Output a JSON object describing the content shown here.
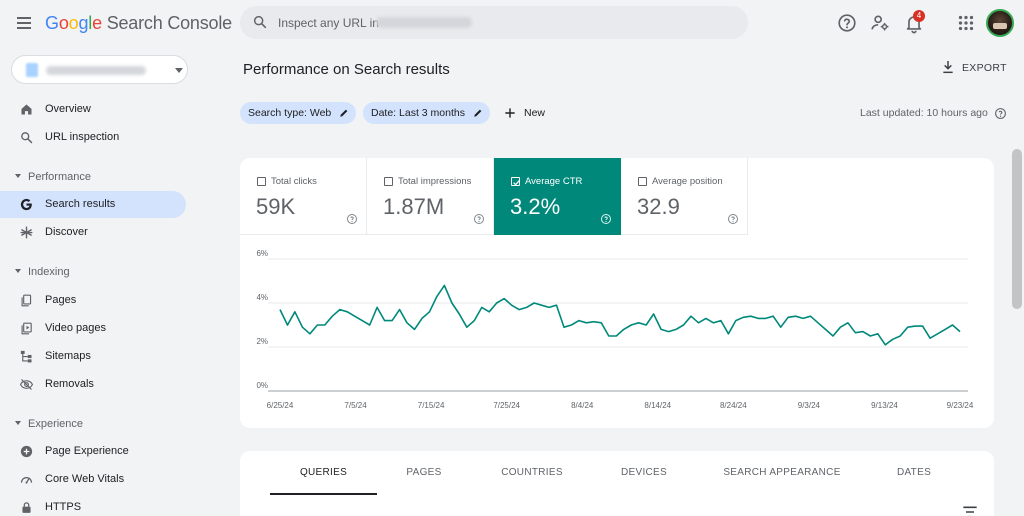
{
  "app": {
    "logo_letters": [
      "G",
      "o",
      "o",
      "g",
      "l",
      "e"
    ],
    "logo_suffix": "Search Console"
  },
  "search": {
    "placeholder": "Inspect any URL in"
  },
  "topbar": {
    "notifications_count": "4"
  },
  "sidebar": {
    "items": [
      {
        "label": "Overview",
        "icon": "home-icon"
      },
      {
        "label": "URL inspection",
        "icon": "search-icon"
      }
    ],
    "sections": [
      {
        "label": "Performance",
        "items": [
          {
            "label": "Search results",
            "icon": "google-g-icon",
            "active": true
          },
          {
            "label": "Discover",
            "icon": "asterisk-icon"
          }
        ]
      },
      {
        "label": "Indexing",
        "items": [
          {
            "label": "Pages",
            "icon": "pages-icon"
          },
          {
            "label": "Video pages",
            "icon": "video-pages-icon"
          },
          {
            "label": "Sitemaps",
            "icon": "sitemap-icon"
          },
          {
            "label": "Removals",
            "icon": "eye-off-icon"
          }
        ]
      },
      {
        "label": "Experience",
        "items": [
          {
            "label": "Page Experience",
            "icon": "plus-circle-icon"
          },
          {
            "label": "Core Web Vitals",
            "icon": "speedometer-icon"
          },
          {
            "label": "HTTPS",
            "icon": "lock-icon"
          }
        ]
      }
    ]
  },
  "main": {
    "title": "Performance on Search results",
    "export_label": "EXPORT",
    "filters": [
      {
        "label": "Search type: Web"
      },
      {
        "label": "Date: Last 3 months"
      }
    ],
    "new_label": "New",
    "last_updated": "Last updated: 10 hours ago"
  },
  "metrics": [
    {
      "label": "Total clicks",
      "value": "59K",
      "checked": false
    },
    {
      "label": "Total impressions",
      "value": "1.87M",
      "checked": false
    },
    {
      "label": "Average CTR",
      "value": "3.2%",
      "checked": true
    },
    {
      "label": "Average position",
      "value": "32.9",
      "checked": false
    }
  ],
  "colors": {
    "accent": "#00897b",
    "chip": "#d3e3fd",
    "active_nav": "#d3e3fd"
  },
  "chart_data": {
    "type": "line",
    "title": "",
    "xlabel": "",
    "ylabel": "",
    "ylim": [
      0,
      6
    ],
    "y_ticks": [
      "6%",
      "4%",
      "2%",
      "0%"
    ],
    "x_ticks": [
      "6/25/24",
      "7/5/24",
      "7/15/24",
      "7/25/24",
      "8/4/24",
      "8/14/24",
      "8/24/24",
      "9/3/24",
      "9/13/24",
      "9/23/24"
    ],
    "grid": true,
    "series": [
      {
        "color": "#00897b",
        "values": [
          3.7,
          3.0,
          3.6,
          2.9,
          2.6,
          3.0,
          3.0,
          3.4,
          3.7,
          3.6,
          3.4,
          3.2,
          3.0,
          3.8,
          3.2,
          3.2,
          3.7,
          3.1,
          2.8,
          3.3,
          3.6,
          4.3,
          4.8,
          4.0,
          3.5,
          2.9,
          3.2,
          3.8,
          3.6,
          4.0,
          4.2,
          3.9,
          3.7,
          3.8,
          4.0,
          3.9,
          3.8,
          3.9,
          2.9,
          3.0,
          3.2,
          3.1,
          3.15,
          3.1,
          2.5,
          2.5,
          2.8,
          3.0,
          3.1,
          3.0,
          3.5,
          2.8,
          2.7,
          2.8,
          3.0,
          3.4,
          3.1,
          3.3,
          3.1,
          3.2,
          2.6,
          3.2,
          3.35,
          3.4,
          3.3,
          3.3,
          3.4,
          2.9,
          3.35,
          3.4,
          3.3,
          3.4,
          3.1,
          2.8,
          2.5,
          2.9,
          3.1,
          2.65,
          2.7,
          2.5,
          2.6,
          2.1,
          2.35,
          2.5,
          2.9,
          2.95,
          2.95,
          2.4,
          2.6,
          2.8,
          3.0,
          2.7
        ]
      }
    ]
  },
  "tabs": [
    {
      "label": "QUERIES",
      "active": true
    },
    {
      "label": "PAGES"
    },
    {
      "label": "COUNTRIES"
    },
    {
      "label": "DEVICES"
    },
    {
      "label": "SEARCH APPEARANCE"
    },
    {
      "label": "DATES"
    }
  ]
}
